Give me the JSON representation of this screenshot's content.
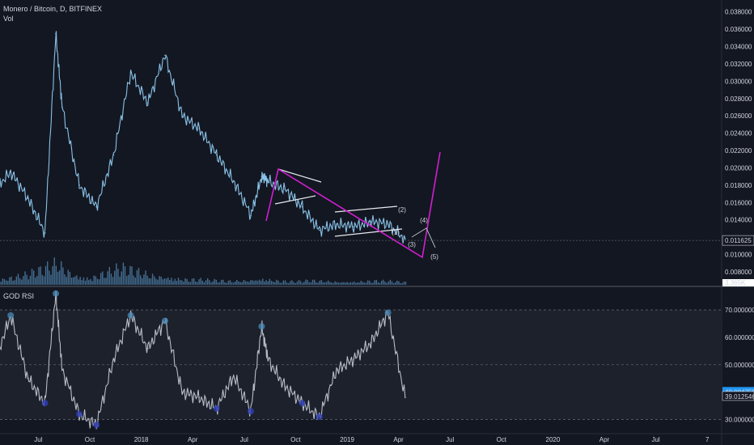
{
  "header": {
    "title": "Monero / Bitcoin, D, BITFINEX",
    "volume_label": "Vol",
    "rsi_label": "GOD RSI"
  },
  "colors": {
    "background": "#131722",
    "price_line": "#89c2e7",
    "volume": "#4f7fa6",
    "rsi_line": "#b8bcc6",
    "pattern_white": "#e7e9ee",
    "pattern_magenta": "#d21fd0",
    "last_price_tag": "#131722",
    "rsi_tag_1": "#2196f3",
    "rsi_tag_2": "#131722"
  },
  "price_axis": {
    "ticks": [
      "0.038000",
      "0.036000",
      "0.034000",
      "0.032000",
      "0.030000",
      "0.028000",
      "0.026000",
      "0.024000",
      "0.022000",
      "0.020000",
      "0.018000",
      "0.016000",
      "0.014000",
      "0.010000",
      "0.008000"
    ],
    "last_price": "0.011625",
    "volume_value": "3.365K"
  },
  "rsi_axis": {
    "ticks": [
      "70.000000",
      "60.000000",
      "50.000000",
      "30.000000"
    ],
    "value_1": "40.084759",
    "value_2": "39.012546"
  },
  "time_axis": [
    "Jul",
    "Oct",
    "2018",
    "Apr",
    "Jul",
    "Oct",
    "2019",
    "Apr",
    "Jul",
    "Oct",
    "2020",
    "Apr",
    "Jul",
    "7"
  ],
  "wave_labels": [
    "(1)",
    "(2)",
    "(3)",
    "(4)",
    "(5)"
  ],
  "chart_data": [
    {
      "type": "line",
      "pane": "price",
      "x": [
        "2017-05",
        "2017-06",
        "2017-07",
        "2017-08",
        "2017-08-20",
        "2017-09",
        "2017-10",
        "2017-11",
        "2017-12",
        "2018-01",
        "2018-02",
        "2018-03",
        "2018-04",
        "2018-05",
        "2018-06",
        "2018-07",
        "2018-08",
        "2018-08-20",
        "2018-09",
        "2018-10",
        "2018-11",
        "2018-12",
        "2019-01",
        "2019-02",
        "2019-03",
        "2019-04",
        "2019-05"
      ],
      "values": [
        0.0175,
        0.0195,
        0.0165,
        0.0125,
        0.0355,
        0.027,
        0.018,
        0.0155,
        0.0215,
        0.031,
        0.0275,
        0.033,
        0.026,
        0.0245,
        0.0215,
        0.0185,
        0.0145,
        0.019,
        0.0185,
        0.0175,
        0.0155,
        0.0128,
        0.0135,
        0.0132,
        0.0138,
        0.0135,
        0.0118
      ],
      "ylim": [
        0.0065,
        0.039
      ]
    },
    {
      "type": "bar",
      "pane": "volume",
      "series": [
        {
          "name": "Vol",
          "values": [
            1.5,
            2.2,
            3.1,
            4.5,
            6.8,
            3.2,
            2.1,
            3.8,
            5.2,
            4.1,
            2.9,
            2.4,
            1.8,
            1.6,
            1.3,
            1.1,
            1.4,
            1.9,
            1.2,
            1.0,
            1.3,
            1.1,
            0.9,
            1.0,
            1.2,
            1.1,
            0.8
          ]
        }
      ]
    },
    {
      "type": "line",
      "pane": "rsi",
      "x": [
        "2017-05",
        "2017-06",
        "2017-07",
        "2017-08",
        "2017-08-20",
        "2017-09",
        "2017-10",
        "2017-11",
        "2017-12",
        "2018-01",
        "2018-02",
        "2018-03",
        "2018-04",
        "2018-05",
        "2018-06",
        "2018-07",
        "2018-08",
        "2018-08-20",
        "2018-09",
        "2018-10",
        "2018-11",
        "2018-12",
        "2019-01",
        "2019-02",
        "2019-03",
        "2019-04",
        "2019-05"
      ],
      "values": [
        50,
        68,
        45,
        36,
        76,
        48,
        32,
        28,
        52,
        68,
        56,
        66,
        40,
        38,
        34,
        46,
        33,
        64,
        52,
        42,
        36,
        31,
        48,
        52,
        58,
        69,
        38
      ],
      "ylim": [
        26,
        78
      ]
    }
  ]
}
